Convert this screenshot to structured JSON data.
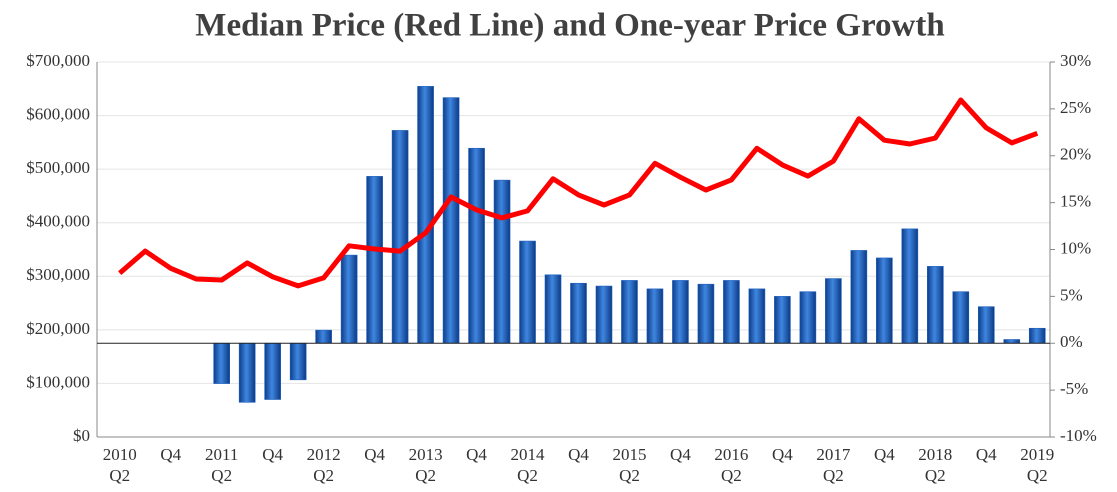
{
  "chart_data": {
    "type": "bar-line",
    "title": "Median Price (Red Line) and One-year Price Growth",
    "categories": [
      "2010\nQ2",
      null,
      "Q4",
      null,
      "2011\nQ2",
      null,
      "Q4",
      null,
      "2012\nQ2",
      null,
      "Q4",
      null,
      "2013\nQ2",
      null,
      "Q4",
      null,
      "2014\nQ2",
      null,
      "Q4",
      null,
      "2015\nQ2",
      null,
      "Q4",
      null,
      "2016\nQ2",
      null,
      "Q4",
      null,
      "2017\nQ2",
      null,
      "Q4",
      null,
      "2018\nQ2",
      null,
      "Q4",
      null,
      "2019\nQ2"
    ],
    "series": [
      {
        "name": "One-year Price Growth",
        "type": "bar",
        "axis": "y2",
        "color": "#1f5fbf",
        "values": [
          null,
          null,
          null,
          null,
          -4.3,
          -6.3,
          -6.0,
          -3.9,
          1.4,
          9.4,
          17.8,
          22.7,
          27.4,
          26.2,
          20.8,
          17.4,
          10.9,
          7.3,
          6.4,
          6.1,
          6.7,
          5.8,
          6.7,
          6.3,
          6.7,
          5.8,
          5.0,
          5.5,
          6.9,
          9.9,
          9.1,
          12.2,
          8.2,
          5.5,
          3.9,
          0.4,
          1.6
        ]
      },
      {
        "name": "Median Price",
        "type": "line",
        "color": "#ff0000",
        "values": [
          306000,
          347000,
          315000,
          295000,
          293000,
          325000,
          299000,
          282000,
          297000,
          357000,
          351000,
          347000,
          381000,
          448000,
          424000,
          409000,
          422000,
          482000,
          452000,
          433000,
          452000,
          511000,
          485000,
          461000,
          480000,
          539000,
          508000,
          487000,
          515000,
          594000,
          554000,
          547000,
          558000,
          629000,
          577000,
          549000,
          567000
        ]
      }
    ],
    "ylim": [
      0,
      700000
    ],
    "yticks": [
      {
        "value": 0,
        "label": "$0"
      },
      {
        "value": 100000,
        "label": "$100,000"
      },
      {
        "value": 200000,
        "label": "$200,000"
      },
      {
        "value": 300000,
        "label": "$300,000"
      },
      {
        "value": 400000,
        "label": "$400,000"
      },
      {
        "value": 500000,
        "label": "$500,000"
      },
      {
        "value": 600000,
        "label": "$600,000"
      },
      {
        "value": 700000,
        "label": "$700,000"
      }
    ],
    "y2lim": [
      -10,
      30
    ],
    "y2ticks": [
      {
        "value": -10,
        "label": "-10%"
      },
      {
        "value": -5,
        "label": "-5%"
      },
      {
        "value": 0,
        "label": "0%"
      },
      {
        "value": 5,
        "label": "5%"
      },
      {
        "value": 10,
        "label": "10%"
      },
      {
        "value": 15,
        "label": "15%"
      },
      {
        "value": 20,
        "label": "20%"
      },
      {
        "value": 25,
        "label": "25%"
      },
      {
        "value": 30,
        "label": "30%"
      }
    ],
    "grid": true
  }
}
